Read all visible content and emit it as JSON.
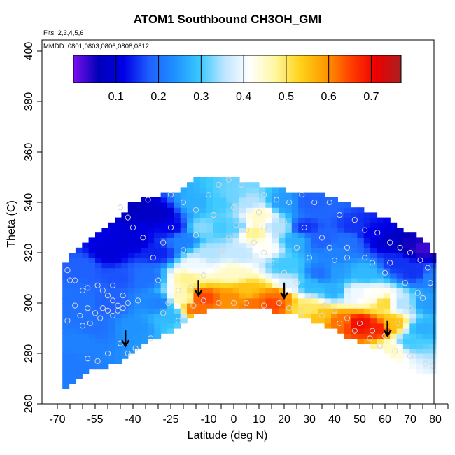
{
  "title": "ATOM1 Southbound CH3OH_GMI",
  "flights_note": "Flts: 2,3,4,5,6",
  "dates_note": "MMDD: 0801,0803,0806,0808,0812",
  "colors": {
    "colorbar_stops": [
      "#7a10ee",
      "#0000b8",
      "#0000e6",
      "#1f5fff",
      "#1e90ff",
      "#38c8ff",
      "#bfe6ff",
      "#ffffff",
      "#fff7a0",
      "#ffd21a",
      "#ff9a00",
      "#ff4000",
      "#ee0000",
      "#aa2020"
    ],
    "points": "#d8d8d8",
    "arrows": "#000000"
  },
  "chart_data": {
    "type": "heatmap",
    "title": "ATOM1 Southbound CH3OH_GMI",
    "xlabel": "Latitude (deg N)",
    "ylabel": "Theta (C)",
    "xlim": [
      -70,
      85
    ],
    "ylim": [
      260,
      405
    ],
    "x_ticks": [
      -70,
      -55,
      -40,
      -25,
      -10,
      0,
      10,
      20,
      30,
      40,
      50,
      60,
      70,
      80
    ],
    "x_minor_ticks": [
      -65,
      -60,
      -50,
      -45,
      -35,
      -30,
      -20,
      -15,
      -5,
      5,
      15,
      25,
      35,
      45,
      55,
      65,
      75,
      85
    ],
    "y_ticks": [
      260,
      280,
      300,
      320,
      340,
      360,
      380,
      400
    ],
    "colorbar": {
      "min": 0.0,
      "max": 0.77,
      "ticks": [
        0.1,
        0.2,
        0.3,
        0.4,
        0.5,
        0.6,
        0.7
      ],
      "tick_labels": [
        "0.1",
        "0.2",
        "0.3",
        "0.4",
        "0.5",
        "0.6",
        "0.7"
      ]
    },
    "grid": false,
    "top_boundary": [
      [
        -68,
        313
      ],
      [
        -65,
        318
      ],
      [
        -60,
        323
      ],
      [
        -55,
        327
      ],
      [
        -50,
        330
      ],
      [
        -45,
        334
      ],
      [
        -40,
        339
      ],
      [
        -35,
        341
      ],
      [
        -30,
        342
      ],
      [
        -25,
        343
      ],
      [
        -20,
        345
      ],
      [
        -15,
        348
      ],
      [
        -10,
        349
      ],
      [
        -5,
        349
      ],
      [
        0,
        349
      ],
      [
        5,
        347
      ],
      [
        10,
        346
      ],
      [
        15,
        345
      ],
      [
        20,
        344
      ],
      [
        25,
        344
      ],
      [
        30,
        343
      ],
      [
        35,
        342
      ],
      [
        40,
        341
      ],
      [
        45,
        339
      ],
      [
        50,
        337
      ],
      [
        55,
        335
      ],
      [
        60,
        333
      ],
      [
        65,
        330
      ],
      [
        70,
        327
      ],
      [
        75,
        324
      ],
      [
        78,
        322
      ],
      [
        80,
        317
      ]
    ],
    "bottom_boundary": [
      [
        -68,
        267
      ],
      [
        -65,
        268
      ],
      [
        -60,
        273
      ],
      [
        -55,
        275
      ],
      [
        -50,
        276
      ],
      [
        -45,
        277
      ],
      [
        -40,
        282
      ],
      [
        -35,
        286
      ],
      [
        -30,
        288
      ],
      [
        -25,
        290
      ],
      [
        -20,
        293
      ],
      [
        -15,
        296
      ],
      [
        -10,
        299
      ],
      [
        -5,
        300
      ],
      [
        0,
        299
      ],
      [
        5,
        299
      ],
      [
        10,
        299
      ],
      [
        15,
        298
      ],
      [
        20,
        297
      ],
      [
        25,
        296
      ],
      [
        30,
        294
      ],
      [
        35,
        292
      ],
      [
        40,
        290
      ],
      [
        45,
        288
      ],
      [
        50,
        286
      ],
      [
        55,
        284
      ],
      [
        60,
        281
      ],
      [
        65,
        278
      ],
      [
        70,
        275
      ],
      [
        75,
        273
      ],
      [
        78,
        272
      ],
      [
        80,
        272
      ]
    ],
    "value_anchors": [
      [
        -60,
        285,
        0.22
      ],
      [
        -60,
        300,
        0.2
      ],
      [
        -60,
        315,
        0.18
      ],
      [
        -55,
        290,
        0.2
      ],
      [
        -50,
        300,
        0.18
      ],
      [
        -45,
        310,
        0.17
      ],
      [
        -50,
        320,
        0.1
      ],
      [
        -40,
        325,
        0.1
      ],
      [
        -40,
        338,
        0.07
      ],
      [
        -30,
        335,
        0.08
      ],
      [
        -25,
        330,
        0.12
      ],
      [
        -20,
        325,
        0.22
      ],
      [
        -30,
        320,
        0.14
      ],
      [
        -35,
        310,
        0.2
      ],
      [
        -30,
        300,
        0.22
      ],
      [
        -40,
        290,
        0.24
      ],
      [
        -25,
        295,
        0.28
      ],
      [
        -20,
        302,
        0.46
      ],
      [
        -18,
        310,
        0.48
      ],
      [
        -15,
        298,
        0.62
      ],
      [
        -12,
        302,
        0.65
      ],
      [
        -15,
        315,
        0.4
      ],
      [
        -10,
        320,
        0.35
      ],
      [
        -12,
        330,
        0.33
      ],
      [
        -15,
        340,
        0.27
      ],
      [
        -5,
        340,
        0.3
      ],
      [
        0,
        342,
        0.32
      ],
      [
        5,
        340,
        0.35
      ],
      [
        10,
        335,
        0.45
      ],
      [
        8,
        328,
        0.48
      ],
      [
        12,
        322,
        0.42
      ],
      [
        3,
        320,
        0.36
      ],
      [
        0,
        312,
        0.45
      ],
      [
        5,
        305,
        0.55
      ],
      [
        0,
        302,
        0.6
      ],
      [
        8,
        300,
        0.62
      ],
      [
        15,
        300,
        0.65
      ],
      [
        18,
        303,
        0.62
      ],
      [
        22,
        307,
        0.38
      ],
      [
        20,
        315,
        0.3
      ],
      [
        25,
        325,
        0.27
      ],
      [
        18,
        330,
        0.35
      ],
      [
        20,
        340,
        0.25
      ],
      [
        30,
        340,
        0.18
      ],
      [
        28,
        330,
        0.15
      ],
      [
        35,
        325,
        0.18
      ],
      [
        40,
        320,
        0.22
      ],
      [
        45,
        325,
        0.2
      ],
      [
        48,
        330,
        0.15
      ],
      [
        55,
        328,
        0.12
      ],
      [
        62,
        325,
        0.08
      ],
      [
        70,
        324,
        0.05
      ],
      [
        75,
        322,
        0.03
      ],
      [
        65,
        316,
        0.15
      ],
      [
        72,
        312,
        0.15
      ],
      [
        78,
        310,
        0.22
      ],
      [
        77,
        300,
        0.25
      ],
      [
        75,
        290,
        0.27
      ],
      [
        70,
        285,
        0.3
      ],
      [
        62,
        282,
        0.45
      ],
      [
        57,
        290,
        0.68
      ],
      [
        50,
        292,
        0.7
      ],
      [
        42,
        293,
        0.62
      ],
      [
        35,
        295,
        0.55
      ],
      [
        30,
        298,
        0.5
      ],
      [
        30,
        307,
        0.28
      ],
      [
        40,
        305,
        0.27
      ],
      [
        48,
        304,
        0.4
      ],
      [
        55,
        303,
        0.42
      ],
      [
        60,
        300,
        0.52
      ],
      [
        63,
        292,
        0.55
      ],
      [
        66,
        300,
        0.35
      ],
      [
        52,
        312,
        0.28
      ],
      [
        40,
        312,
        0.25
      ],
      [
        35,
        312,
        0.2
      ],
      [
        -65,
        300,
        0.2
      ],
      [
        -66,
        275,
        0.21
      ],
      [
        -5,
        330,
        0.3
      ],
      [
        0,
        330,
        0.31
      ]
    ],
    "arrows": [
      [
        -43,
        283
      ],
      [
        -14,
        303
      ],
      [
        20,
        302
      ],
      [
        61,
        287
      ]
    ],
    "sample_points": [
      [
        -66,
        313
      ],
      [
        -65,
        309
      ],
      [
        -63,
        309
      ],
      [
        -60,
        305
      ],
      [
        -58,
        306
      ],
      [
        -54,
        307
      ],
      [
        -52,
        305
      ],
      [
        -50,
        303
      ],
      [
        -48,
        301
      ],
      [
        -46,
        299
      ],
      [
        -63,
        299
      ],
      [
        -58,
        298
      ],
      [
        -55,
        296
      ],
      [
        -52,
        298
      ],
      [
        -50,
        297
      ],
      [
        -48,
        295
      ],
      [
        -46,
        297
      ],
      [
        -44,
        298
      ],
      [
        -42,
        300
      ],
      [
        -38,
        301
      ],
      [
        -66,
        293
      ],
      [
        -61,
        295
      ],
      [
        -57,
        292
      ],
      [
        -53,
        294
      ],
      [
        -60,
        291
      ],
      [
        -45,
        284
      ],
      [
        -50,
        280
      ],
      [
        -54,
        277
      ],
      [
        -58,
        278
      ],
      [
        -42,
        280
      ],
      [
        -39,
        282
      ],
      [
        -33,
        286
      ],
      [
        -30,
        309
      ],
      [
        -48,
        307
      ],
      [
        -44,
        303
      ],
      [
        -32,
        318
      ],
      [
        -36,
        326
      ],
      [
        -40,
        330
      ],
      [
        -42,
        334
      ],
      [
        -45,
        338
      ],
      [
        -34,
        341
      ],
      [
        -25,
        343
      ],
      [
        -20,
        340
      ],
      [
        -15,
        337
      ],
      [
        -10,
        343
      ],
      [
        -6,
        347
      ],
      [
        -2,
        349
      ],
      [
        3,
        347
      ],
      [
        7,
        342
      ],
      [
        12,
        343
      ],
      [
        17,
        341
      ],
      [
        22,
        340
      ],
      [
        27,
        343
      ],
      [
        32,
        340
      ],
      [
        38,
        340
      ],
      [
        42,
        335
      ],
      [
        48,
        333
      ],
      [
        52,
        329
      ],
      [
        57,
        328
      ],
      [
        62,
        324
      ],
      [
        66,
        322
      ],
      [
        70,
        320
      ],
      [
        74,
        317
      ],
      [
        77,
        314
      ],
      [
        78,
        308
      ],
      [
        75,
        302
      ],
      [
        70,
        298
      ],
      [
        65,
        292
      ],
      [
        60,
        287
      ],
      [
        55,
        289
      ],
      [
        50,
        292
      ],
      [
        45,
        294
      ],
      [
        40,
        297
      ],
      [
        36,
        299
      ],
      [
        30,
        303
      ],
      [
        25,
        308
      ],
      [
        20,
        312
      ],
      [
        15,
        316
      ],
      [
        12,
        320
      ],
      [
        8,
        324
      ],
      [
        5,
        329
      ],
      [
        1,
        331
      ],
      [
        -2,
        326
      ],
      [
        -5,
        320
      ],
      [
        -8,
        317
      ],
      [
        -12,
        311
      ],
      [
        -17,
        306
      ],
      [
        -22,
        305
      ],
      [
        -26,
        300
      ],
      [
        -28,
        296
      ],
      [
        -22,
        293
      ],
      [
        -16,
        299
      ],
      [
        -12,
        301
      ],
      [
        -6,
        300
      ],
      [
        0,
        300
      ],
      [
        5,
        300
      ],
      [
        12,
        299
      ],
      [
        18,
        300
      ],
      [
        22,
        298
      ],
      [
        27,
        296
      ],
      [
        35,
        295
      ],
      [
        42,
        292
      ],
      [
        48,
        289
      ],
      [
        54,
        286
      ],
      [
        58,
        283
      ],
      [
        64,
        281
      ],
      [
        70,
        279
      ],
      [
        76,
        276
      ],
      [
        79,
        275
      ],
      [
        45,
        318
      ],
      [
        40,
        317
      ],
      [
        55,
        316
      ],
      [
        60,
        312
      ],
      [
        25,
        322
      ],
      [
        30,
        318
      ],
      [
        35,
        326
      ],
      [
        18,
        328
      ],
      [
        12,
        330
      ],
      [
        -25,
        330
      ],
      [
        -28,
        324
      ],
      [
        -20,
        321
      ],
      [
        -15,
        327
      ],
      [
        -8,
        335
      ],
      [
        0,
        338
      ],
      [
        10,
        336
      ],
      [
        20,
        332
      ],
      [
        28,
        330
      ],
      [
        38,
        322
      ],
      [
        45,
        322
      ],
      [
        52,
        318
      ],
      [
        62,
        316
      ],
      [
        68,
        308
      ],
      [
        73,
        304
      ]
    ]
  }
}
